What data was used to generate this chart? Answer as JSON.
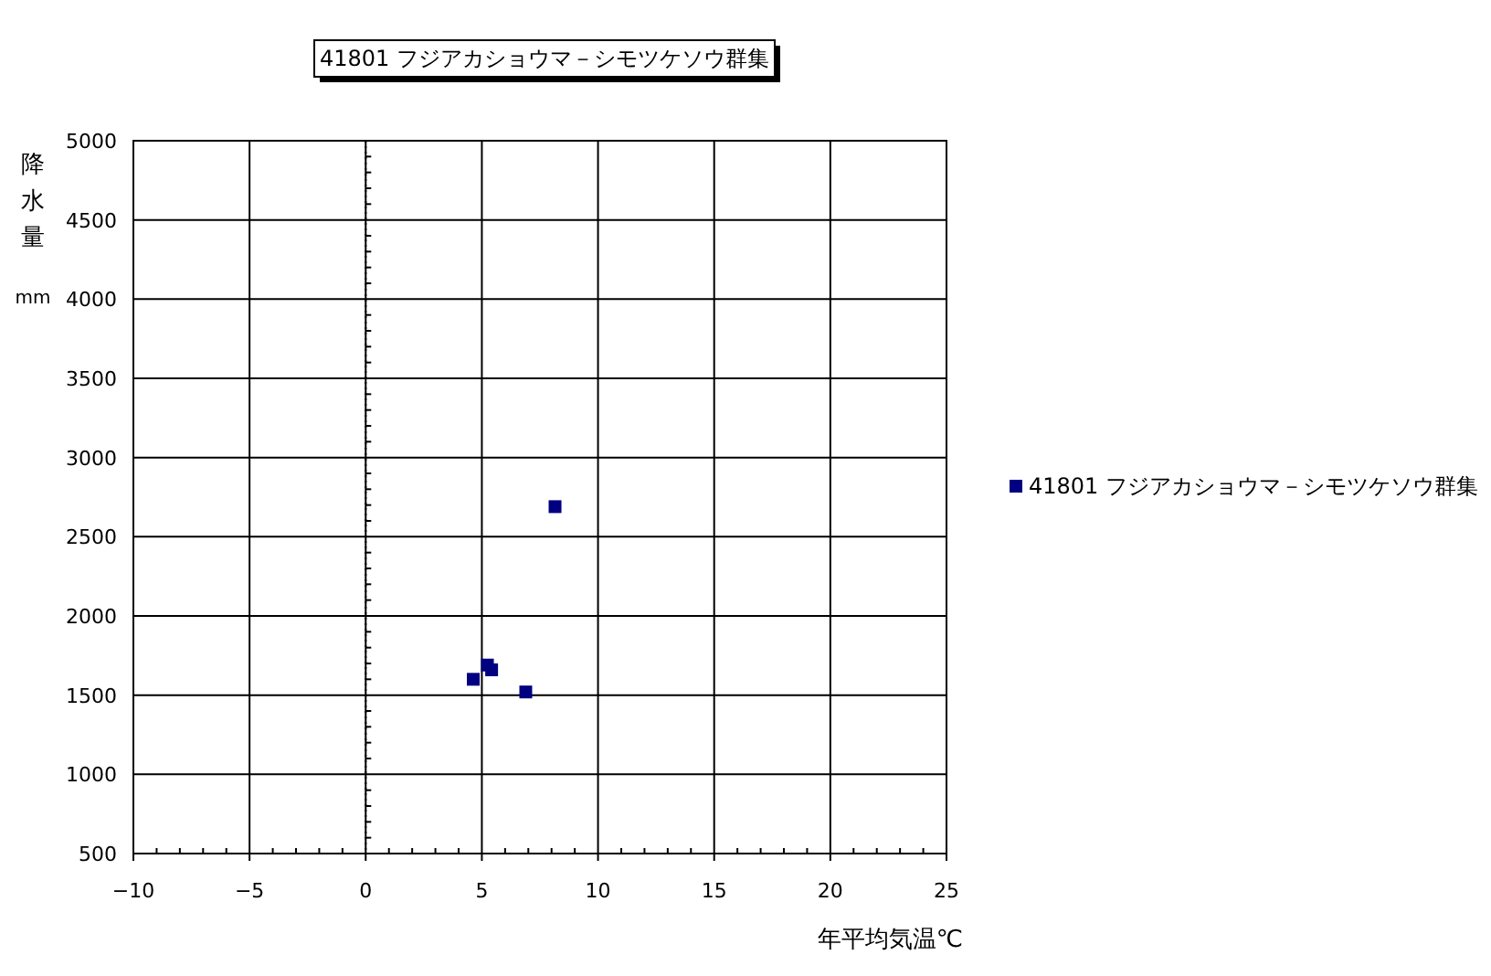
{
  "chart_data": {
    "type": "scatter",
    "title": "41801 フジアカショウマ－シモツケソウ群集",
    "xlabel": "年平均気温℃",
    "ylabel": "降水量 mm",
    "series": [
      {
        "name": "41801 フジアカショウマ－シモツケソウ群集",
        "color": "#000080",
        "x": [
          8.15,
          5.24,
          5.42,
          4.63,
          6.89
        ],
        "values": [
          2690,
          1690,
          1660,
          1600,
          1520
        ]
      }
    ],
    "xlim": [
      -10,
      25
    ],
    "xticks": [
      -10,
      -5,
      0,
      5,
      10,
      15,
      20,
      25
    ],
    "ylim": [
      500,
      5000
    ],
    "yticks": [
      500,
      1000,
      1500,
      2000,
      2500,
      3000,
      3500,
      4000,
      4500,
      5000
    ],
    "grid": true,
    "legend": "right",
    "marker": "square",
    "ref_lines": [
      {
        "axis": "x",
        "value": 0,
        "line_style": "dotted"
      }
    ]
  }
}
